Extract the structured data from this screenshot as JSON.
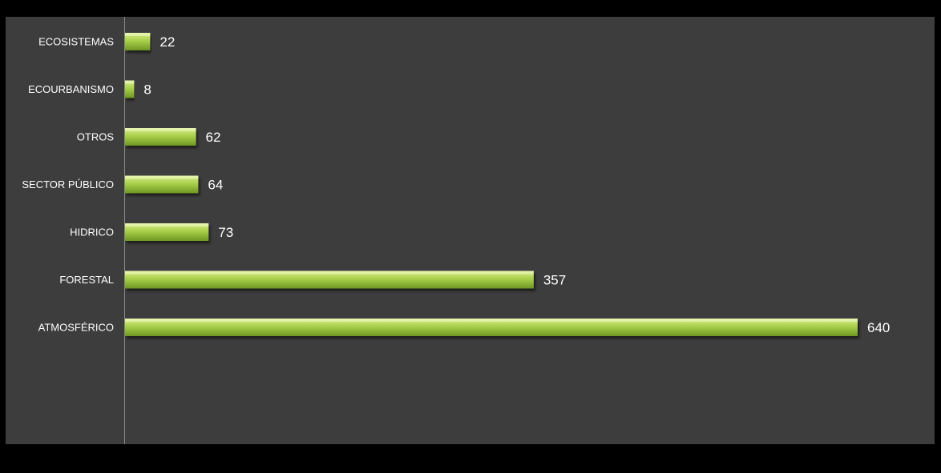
{
  "chart_data": {
    "type": "bar",
    "orientation": "horizontal",
    "categories": [
      "ECOSISTEMAS",
      "ECOURBANISMO",
      "OTROS",
      "SECTOR PÚBLICO",
      "HIDRICO",
      "FORESTAL",
      "ATMOSFÉRICO"
    ],
    "values": [
      22,
      8,
      62,
      64,
      73,
      357,
      640
    ],
    "title": "",
    "xlabel": "",
    "ylabel": "",
    "xlim": [
      0,
      700
    ],
    "grid": false,
    "legend": "none",
    "data_labels": true,
    "colors": {
      "bar_light": "#d9ee8c",
      "bar_mid": "#a9cf4b",
      "bar_dark": "#6f9722",
      "plot_background": "#3d3d3d",
      "page_background": "#000000",
      "axis": "#8c8c8c",
      "text": "#ffffff"
    }
  }
}
